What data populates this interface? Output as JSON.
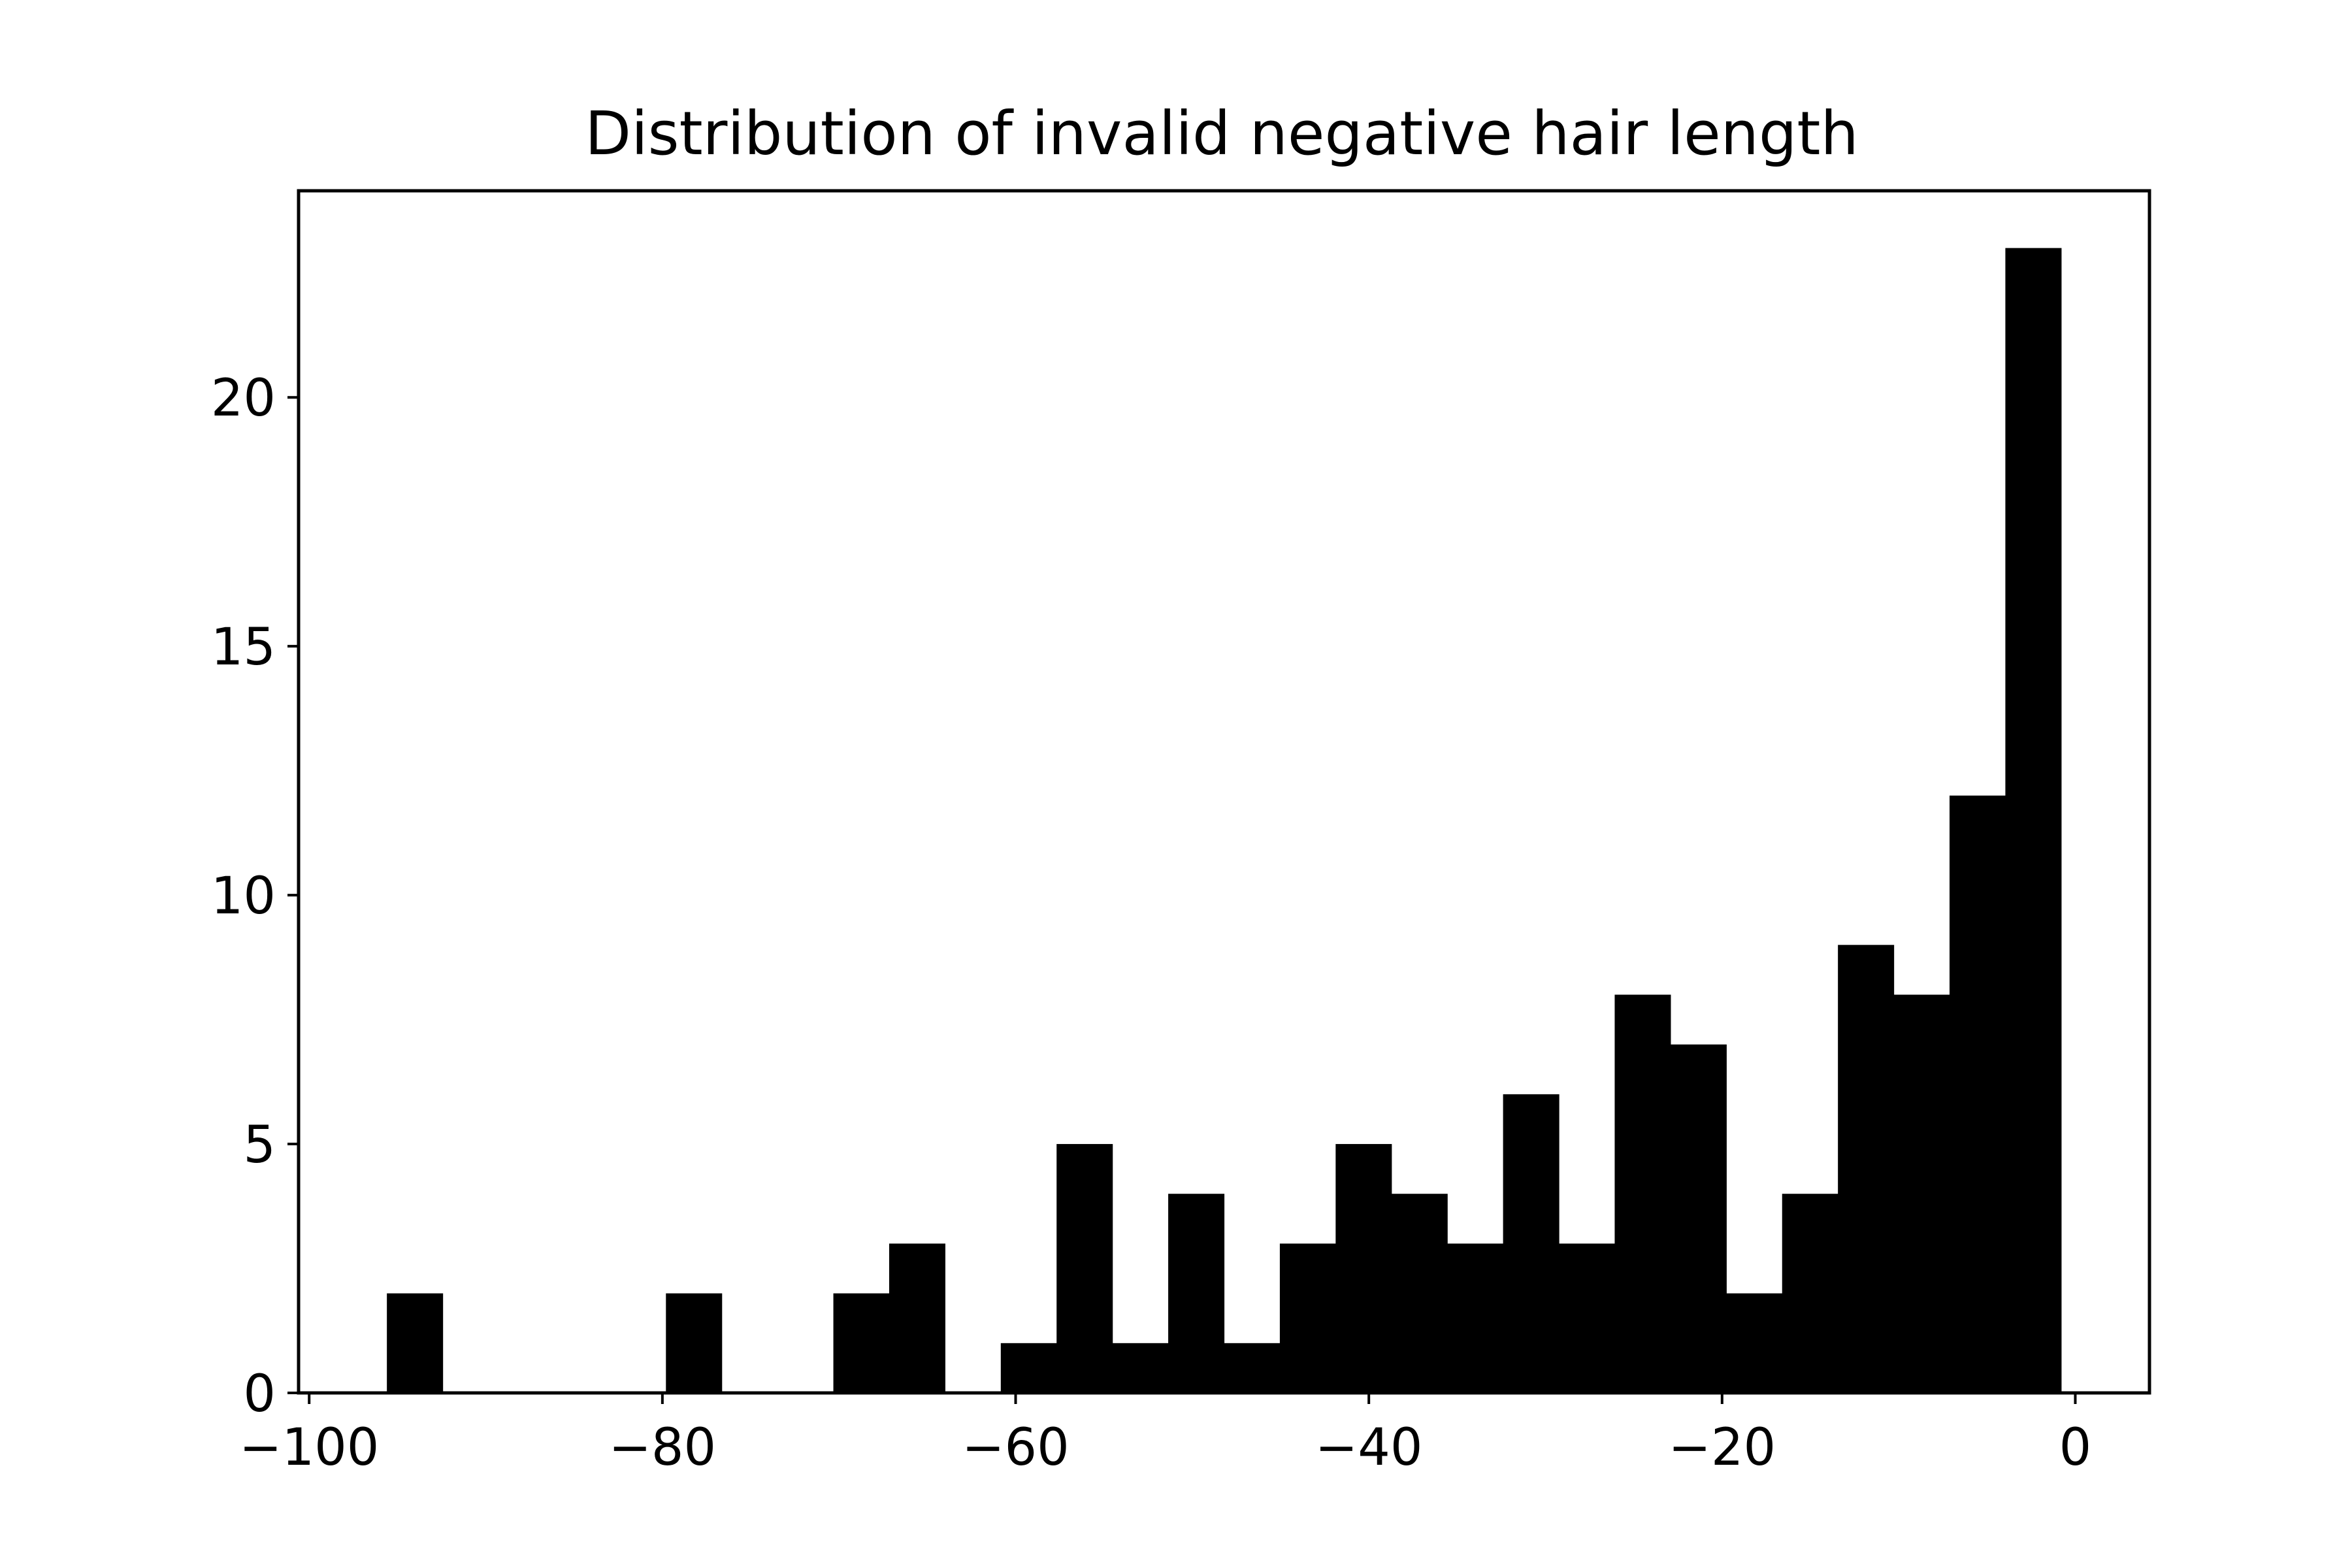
{
  "chart_data": {
    "type": "bar",
    "title": "Distribution of invalid negative hair length",
    "xlabel": "",
    "ylabel": "",
    "xlim": [
      -100.6,
      4.2
    ],
    "ylim": [
      0,
      24.15
    ],
    "grid": false,
    "bar_color": "#000000",
    "bin_edges": [
      -95.6,
      -92.44,
      -89.28,
      -86.12,
      -82.96,
      -79.8,
      -76.64,
      -73.48,
      -70.32,
      -67.16,
      -64.0,
      -60.84,
      -57.68,
      -54.52,
      -51.36,
      -48.2,
      -45.04,
      -41.88,
      -38.72,
      -35.56,
      -32.4,
      -29.24,
      -26.08,
      -22.92,
      -19.76,
      -16.6,
      -13.44,
      -10.28,
      -7.12,
      -3.96,
      -0.8
    ],
    "counts": [
      2,
      0,
      0,
      0,
      0,
      2,
      0,
      0,
      2,
      3,
      0,
      1,
      5,
      1,
      4,
      1,
      3,
      5,
      4,
      3,
      6,
      3,
      8,
      7,
      2,
      4,
      9,
      8,
      12,
      23
    ],
    "x_ticks": [
      {
        "value": -100,
        "label": "−100"
      },
      {
        "value": -80,
        "label": "−80"
      },
      {
        "value": -60,
        "label": "−60"
      },
      {
        "value": -40,
        "label": "−40"
      },
      {
        "value": -20,
        "label": "−20"
      },
      {
        "value": 0,
        "label": "0"
      }
    ],
    "y_ticks": [
      {
        "value": 0,
        "label": "0"
      },
      {
        "value": 5,
        "label": "5"
      },
      {
        "value": 10,
        "label": "10"
      },
      {
        "value": 15,
        "label": "15"
      },
      {
        "value": 20,
        "label": "20"
      }
    ]
  }
}
